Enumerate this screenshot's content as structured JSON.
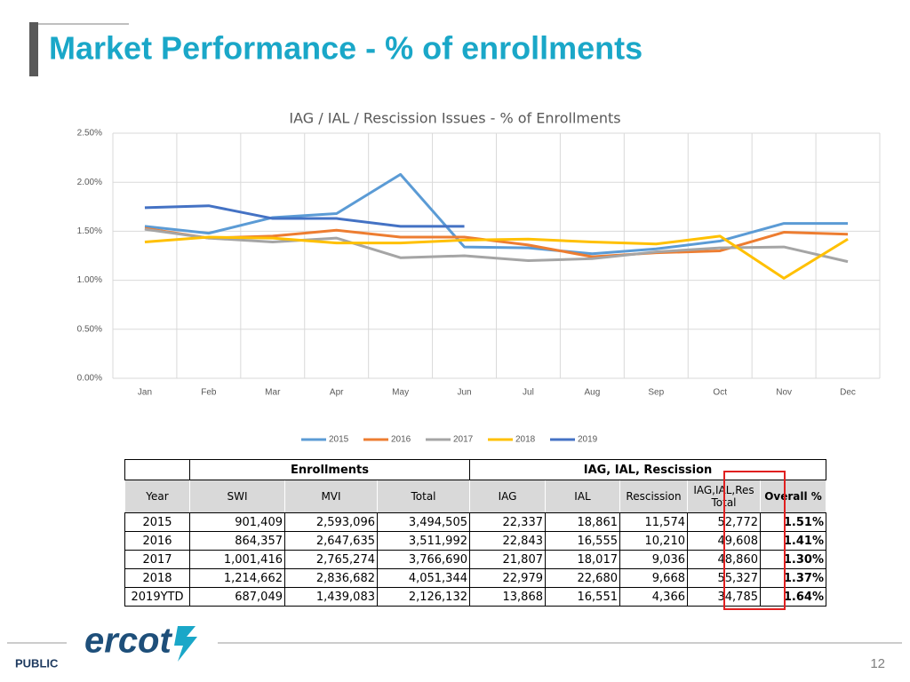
{
  "header": {
    "title": "Market Performance - % of enrollments"
  },
  "chart_data": {
    "type": "line",
    "title": "IAG / IAL / Rescission Issues - % of Enrollments",
    "categories": [
      "Jan",
      "Feb",
      "Mar",
      "Apr",
      "May",
      "Jun",
      "Jul",
      "Aug",
      "Sep",
      "Oct",
      "Nov",
      "Dec"
    ],
    "series": [
      {
        "name": "2015",
        "color": "#5b9bd5",
        "values": [
          1.55,
          1.48,
          1.64,
          1.68,
          2.08,
          1.34,
          1.33,
          1.27,
          1.32,
          1.4,
          1.58,
          1.58
        ]
      },
      {
        "name": "2016",
        "color": "#ed7d31",
        "values": [
          1.53,
          1.43,
          1.45,
          1.51,
          1.44,
          1.44,
          1.36,
          1.24,
          1.28,
          1.3,
          1.49,
          1.47
        ]
      },
      {
        "name": "2017",
        "color": "#a5a5a5",
        "values": [
          1.52,
          1.43,
          1.39,
          1.43,
          1.23,
          1.25,
          1.2,
          1.22,
          1.29,
          1.33,
          1.34,
          1.19
        ]
      },
      {
        "name": "2018",
        "color": "#ffc000",
        "values": [
          1.39,
          1.44,
          1.43,
          1.38,
          1.38,
          1.41,
          1.42,
          1.39,
          1.37,
          1.45,
          1.02,
          1.42
        ]
      },
      {
        "name": "2019",
        "color": "#4472c4",
        "values": [
          1.74,
          1.76,
          1.63,
          1.63,
          1.55,
          1.55,
          null,
          null,
          null,
          null,
          null,
          null
        ]
      }
    ],
    "ylim": [
      0,
      2.5
    ],
    "yticks": [
      {
        "value": 0,
        "label": "0.00%"
      },
      {
        "value": 0.5,
        "label": "0.50%"
      },
      {
        "value": 1,
        "label": "1.00%"
      },
      {
        "value": 1.5,
        "label": "1.50%"
      },
      {
        "value": 2,
        "label": "2.00%"
      },
      {
        "value": 2.5,
        "label": "2.50%"
      }
    ],
    "grid": true,
    "legend": "bottom"
  },
  "table": {
    "groups": [
      "Enrollments",
      "IAG, IAL, Rescission"
    ],
    "columns": [
      "Year",
      "SWI",
      "MVI",
      "Total",
      "IAG",
      "IAL",
      "Rescission",
      "IAG,IAL,Res Total",
      "Overall %"
    ],
    "rows": [
      [
        "2015",
        "901,409",
        "2,593,096",
        "3,494,505",
        "22,337",
        "18,861",
        "11,574",
        "52,772",
        "1.51%"
      ],
      [
        "2016",
        "864,357",
        "2,647,635",
        "3,511,992",
        "22,843",
        "16,555",
        "10,210",
        "49,608",
        "1.41%"
      ],
      [
        "2017",
        "1,001,416",
        "2,765,274",
        "3,766,690",
        "21,807",
        "18,017",
        "9,036",
        "48,860",
        "1.30%"
      ],
      [
        "2018",
        "1,214,662",
        "2,836,682",
        "4,051,344",
        "22,979",
        "22,680",
        "9,668",
        "55,327",
        "1.37%"
      ],
      [
        "2019YTD",
        "687,049",
        "1,439,083",
        "2,126,132",
        "13,868",
        "16,551",
        "4,366",
        "34,785",
        "1.64%"
      ]
    ]
  },
  "footer": {
    "logo": "ercot",
    "label": "PUBLIC",
    "page": "12"
  }
}
